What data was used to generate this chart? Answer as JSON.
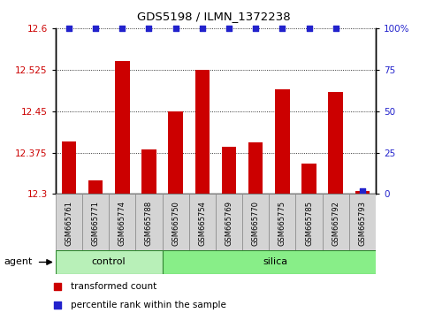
{
  "title": "GDS5198 / ILMN_1372238",
  "samples": [
    "GSM665761",
    "GSM665771",
    "GSM665774",
    "GSM665788",
    "GSM665750",
    "GSM665754",
    "GSM665769",
    "GSM665770",
    "GSM665775",
    "GSM665785",
    "GSM665792",
    "GSM665793"
  ],
  "n_control": 4,
  "n_silica": 8,
  "bar_values": [
    12.395,
    12.325,
    12.54,
    12.38,
    12.45,
    12.525,
    12.385,
    12.393,
    12.49,
    12.355,
    12.485,
    12.305
  ],
  "percentile_values": [
    100,
    100,
    100,
    100,
    100,
    100,
    100,
    100,
    100,
    100,
    100,
    2
  ],
  "ylim_left": [
    12.3,
    12.6
  ],
  "ylim_right": [
    0,
    100
  ],
  "yticks_left": [
    12.3,
    12.375,
    12.45,
    12.525,
    12.6
  ],
  "yticks_right": [
    0,
    25,
    50,
    75,
    100
  ],
  "bar_color": "#cc0000",
  "dot_color": "#2222cc",
  "cell_bg": "#d4d4d4",
  "cell_border": "#888888",
  "bg_color_control": "#b8f0b8",
  "bg_color_silica": "#88ee88",
  "group_border": "#228822",
  "tick_label_color_left": "#cc0000",
  "tick_label_color_right": "#2222cc",
  "legend_items": [
    {
      "label": "transformed count",
      "color": "#cc0000"
    },
    {
      "label": "percentile rank within the sample",
      "color": "#2222cc"
    }
  ],
  "agent_label": "agent",
  "control_label": "control",
  "silica_label": "silica",
  "bar_width": 0.55
}
